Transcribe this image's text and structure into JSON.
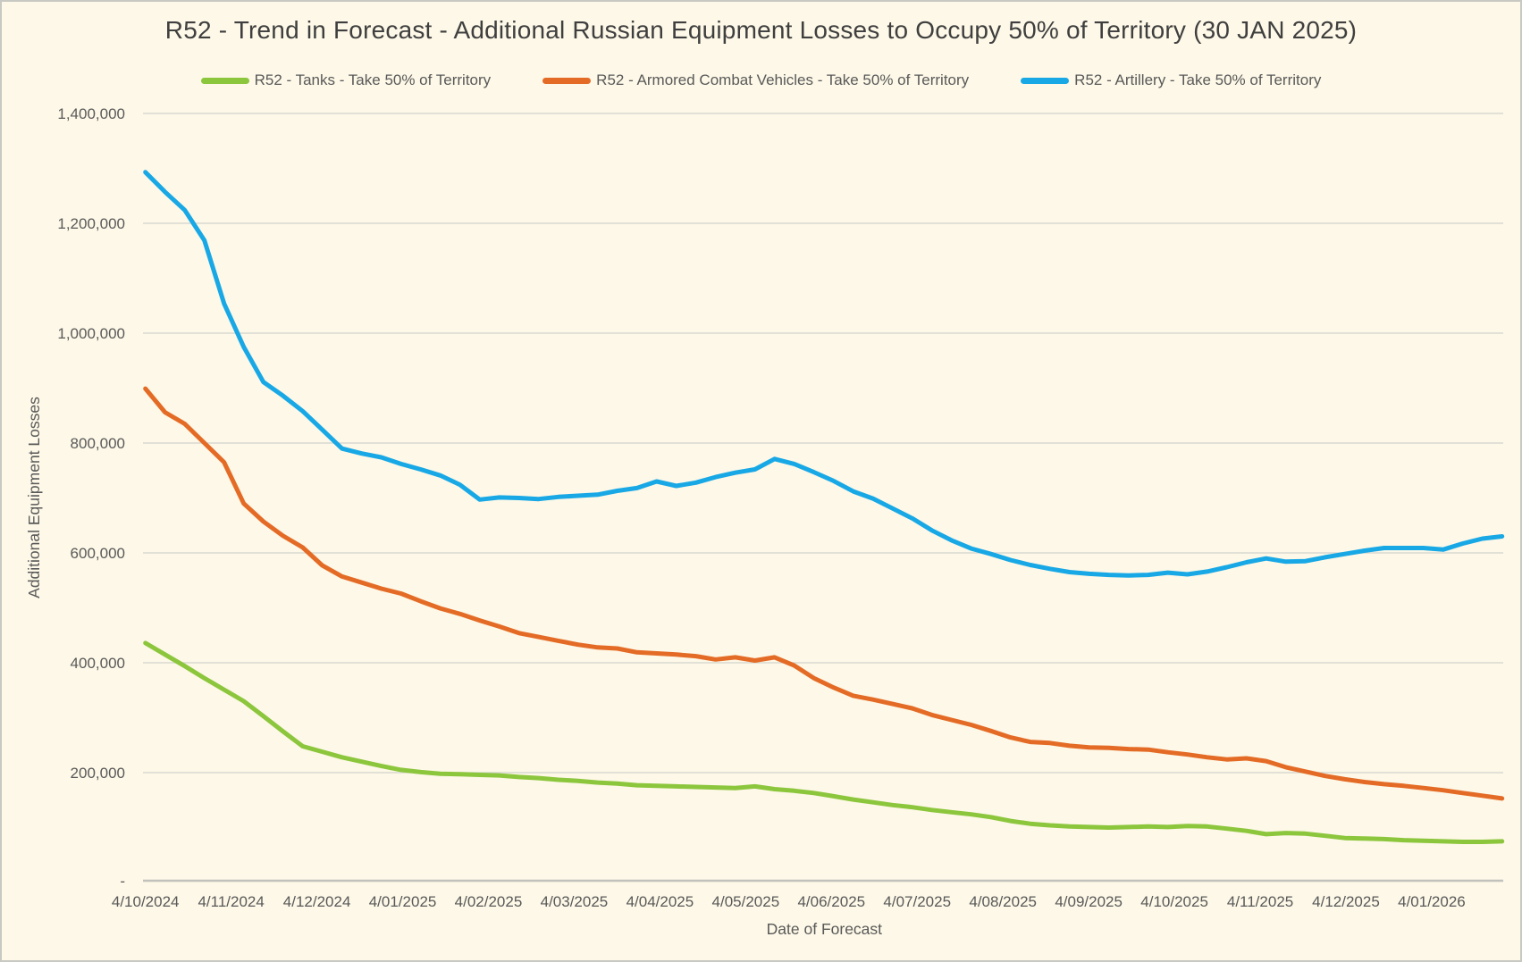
{
  "window": {
    "kind": "chart-screenshot"
  },
  "title": "R52 - Trend in Forecast - Additional Russian Equipment Losses to Occupy 50% of Territory (30 JAN 2025)",
  "colors": {
    "background": "#FDF8E7",
    "page_border": "#C9C9C3",
    "gridline": "#D9D9D2",
    "axis_line": "#C2C2BC",
    "title_text": "#3F3F3F",
    "label_text": "#595959",
    "tanks_green": "#8CC63C",
    "acv_orange": "#E46B26",
    "artillery_blue": "#18A8E6"
  },
  "chart_data": {
    "type": "line",
    "title": "R52 - Trend in Forecast - Additional Russian Equipment Losses to Occupy 50% of Territory (30 JAN 2025)",
    "xlabel": "Date of Forecast",
    "ylabel": "Additional Equipment Losses",
    "ylim": [
      0,
      1400000
    ],
    "grid": true,
    "legend_position": "top",
    "x_tick_labels": [
      "4/10/2024",
      "4/11/2024",
      "4/12/2024",
      "4/01/2025",
      "4/02/2025",
      "4/03/2025",
      "4/04/2025",
      "4/05/2025",
      "4/06/2025",
      "4/07/2025",
      "4/08/2025",
      "4/09/2025",
      "4/10/2025",
      "4/11/2025",
      "4/12/2025",
      "4/01/2026"
    ],
    "y_ticks": [
      {
        "label": "-",
        "value": 0
      },
      {
        "label": "200,000",
        "value": 200000
      },
      {
        "label": "400,000",
        "value": 400000
      },
      {
        "label": "600,000",
        "value": 600000
      },
      {
        "label": "800,000",
        "value": 800000
      },
      {
        "label": "1,000,000",
        "value": 1000000
      },
      {
        "label": "1,200,000",
        "value": 1200000
      },
      {
        "label": "1,400,000",
        "value": 1400000
      }
    ],
    "x_sampling": "weekly points starting at 4/10/2024, monthly axis labels on the 4th of each month",
    "series": [
      {
        "key": "tanks",
        "name": "R52 - Tanks - Take 50% of Territory",
        "color": "#8CC63C",
        "values": [
          436000,
          415000,
          394000,
          372000,
          351000,
          330000,
          303000,
          275000,
          248000,
          238000,
          228000,
          220000,
          212000,
          205000,
          201000,
          198000,
          197000,
          196000,
          195000,
          192000,
          190000,
          187000,
          185000,
          182000,
          180000,
          177000,
          176000,
          175000,
          174000,
          173000,
          172000,
          175000,
          170000,
          167000,
          163000,
          157000,
          151000,
          146000,
          141000,
          137000,
          132000,
          128000,
          124000,
          119000,
          112000,
          107000,
          104000,
          102000,
          101000,
          100000,
          101000,
          102000,
          101000,
          103000,
          102000,
          98000,
          94000,
          88000,
          90000,
          89000,
          85000,
          81000,
          80000,
          79000,
          77000,
          76000,
          75000,
          74000,
          74000,
          75000
        ]
      },
      {
        "key": "acv",
        "name": "R52 - Armored Combat Vehicles - Take 50% of Territory",
        "color": "#E46B26",
        "values": [
          899000,
          856000,
          835000,
          800000,
          765000,
          690000,
          657000,
          631000,
          610000,
          577000,
          557000,
          546000,
          535000,
          526000,
          512000,
          499000,
          489000,
          477000,
          466000,
          454000,
          447000,
          440000,
          433000,
          428000,
          426000,
          419000,
          417000,
          415000,
          412000,
          406000,
          410000,
          404000,
          410000,
          395000,
          372000,
          355000,
          340000,
          333000,
          325000,
          317000,
          305000,
          296000,
          287000,
          276000,
          264000,
          256000,
          254000,
          249000,
          246000,
          245000,
          243000,
          242000,
          237000,
          233000,
          228000,
          224000,
          226000,
          221000,
          210000,
          202000,
          194000,
          188000,
          183000,
          179000,
          176000,
          172000,
          168000,
          163000,
          158000,
          153000
        ]
      },
      {
        "key": "artillery",
        "name": "R52 - Artillery - Take 50% of Territory",
        "color": "#18A8E6",
        "values": [
          1293000,
          1257000,
          1224000,
          1169000,
          1054000,
          975000,
          911000,
          886000,
          858000,
          824000,
          790000,
          781000,
          774000,
          762000,
          752000,
          741000,
          724000,
          697000,
          701000,
          700000,
          698000,
          702000,
          704000,
          706000,
          713000,
          718000,
          730000,
          722000,
          728000,
          738000,
          746000,
          752000,
          771000,
          762000,
          747000,
          731000,
          712000,
          699000,
          681000,
          663000,
          641000,
          623000,
          608000,
          598000,
          587000,
          578000,
          571000,
          565000,
          562000,
          560000,
          559000,
          560000,
          564000,
          561000,
          566000,
          574000,
          583000,
          590000,
          584000,
          585000,
          592000,
          598000,
          604000,
          609000,
          609000,
          609000,
          606000,
          617000,
          626000,
          630000
        ]
      }
    ]
  }
}
